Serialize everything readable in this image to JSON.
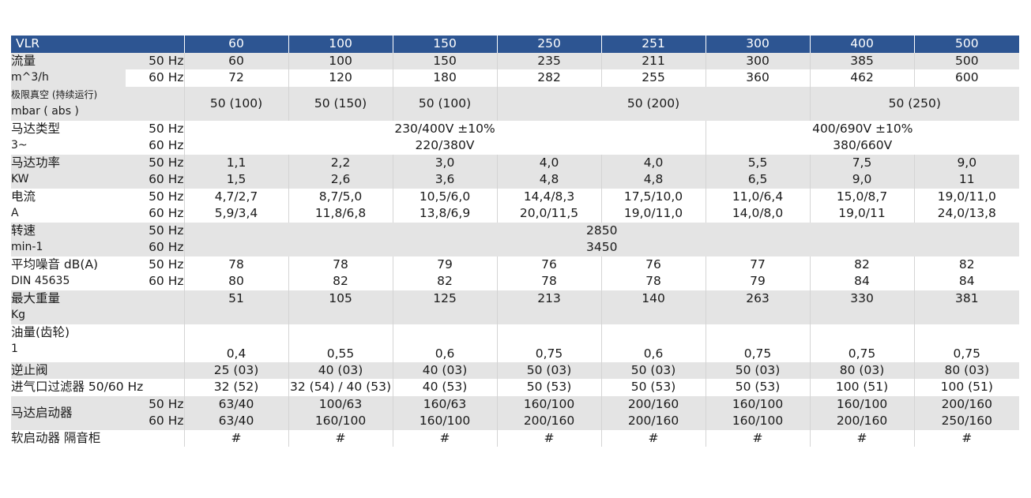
{
  "header": {
    "model": "VLR",
    "columns": [
      "60",
      "100",
      "150",
      "250",
      "251",
      "300",
      "400",
      "500"
    ]
  },
  "flow": {
    "label": "流量",
    "unit": "m^3/h",
    "hz50": "50 Hz",
    "hz60": "60 Hz",
    "v50": [
      "60",
      "100",
      "150",
      "235",
      "211",
      "300",
      "385",
      "500"
    ],
    "v60": [
      "72",
      "120",
      "180",
      "282",
      "255",
      "360",
      "462",
      "600"
    ]
  },
  "vacuum": {
    "label": "极限真空 (持续运行)",
    "unit": "mbar ( abs )",
    "values": [
      "50 (100)",
      "50 (150)",
      "50 (100)",
      "50 (200)",
      "50 (250)"
    ]
  },
  "motor_type": {
    "label": "马达类型",
    "unit": "3~",
    "hz50": "50 Hz",
    "hz60": "60 Hz",
    "a50": "230/400V ±10%",
    "b50": "400/690V ±10%",
    "a60": "220/380V",
    "b60": "380/660V"
  },
  "power": {
    "label": "马达功率",
    "unit": "KW",
    "hz50": "50 Hz",
    "hz60": "60 Hz",
    "v50": [
      "1,1",
      "2,2",
      "3,0",
      "4,0",
      "4,0",
      "5,5",
      "7,5",
      "9,0"
    ],
    "v60": [
      "1,5",
      "2,6",
      "3,6",
      "4,8",
      "4,8",
      "6,5",
      "9,0",
      "11"
    ]
  },
  "current": {
    "label": "电流",
    "unit": "A",
    "hz50": "50 Hz",
    "hz60": "60 Hz",
    "v50": [
      "4,7/2,7",
      "8,7/5,0",
      "10,5/6,0",
      "14,4/8,3",
      "17,5/10,0",
      "11,0/6,4",
      "15,0/8,7",
      "19,0/11,0"
    ],
    "v60": [
      "5,9/3,4",
      "11,8/6,8",
      "13,8/6,9",
      "20,0/11,5",
      "19,0/11,0",
      "14,0/8,0",
      "19,0/11",
      "24,0/13,8"
    ]
  },
  "speed": {
    "label": "转速",
    "unit": "min-1",
    "hz50": "50 Hz",
    "hz60": "60 Hz",
    "v50": "2850",
    "v60": "3450"
  },
  "noise": {
    "label": "平均噪音 dB(A)",
    "unit": "DIN 45635",
    "hz50": "50 Hz",
    "hz60": "60 Hz",
    "v50": [
      "78",
      "78",
      "79",
      "76",
      "76",
      "77",
      "82",
      "82"
    ],
    "v60": [
      "80",
      "82",
      "82",
      "78",
      "78",
      "79",
      "84",
      "84"
    ]
  },
  "weight": {
    "label": "最大重量",
    "unit": "Kg",
    "values": [
      "51",
      "105",
      "125",
      "213",
      "140",
      "263",
      "330",
      "381"
    ]
  },
  "oil": {
    "label": "油量(齿轮)",
    "unit": "1",
    "values": [
      "0,4",
      "0,55",
      "0,6",
      "0,75",
      "0,6",
      "0,75",
      "0,75",
      "0,75"
    ]
  },
  "check_valve": {
    "label": "逆止阀",
    "values": [
      "25 (03)",
      "40 (03)",
      "40 (03)",
      "50 (03)",
      "50 (03)",
      "50 (03)",
      "80 (03)",
      "80 (03)"
    ]
  },
  "inlet_filter": {
    "label": "进气口过滤器  50/60 Hz",
    "values": [
      "32 (52)",
      "32 (54) / 40 (53)",
      "40 (53)",
      "50 (53)",
      "50 (53)",
      "50 (53)",
      "100 (51)",
      "100 (51)"
    ]
  },
  "starter": {
    "label": "马达启动器",
    "hz50": "50 Hz",
    "hz60": "60 Hz",
    "v50": [
      "63/40",
      "100/63",
      "160/63",
      "160/100",
      "200/160",
      "160/100",
      "160/100",
      "200/160"
    ],
    "v60": [
      "63/40",
      "160/100",
      "160/100",
      "200/160",
      "200/160",
      "160/100",
      "200/160",
      "250/160"
    ]
  },
  "soft_start": {
    "label": "软启动器  隔音柜",
    "values": [
      "#",
      "#",
      "#",
      "#",
      "#",
      "#",
      "#",
      "#"
    ]
  }
}
